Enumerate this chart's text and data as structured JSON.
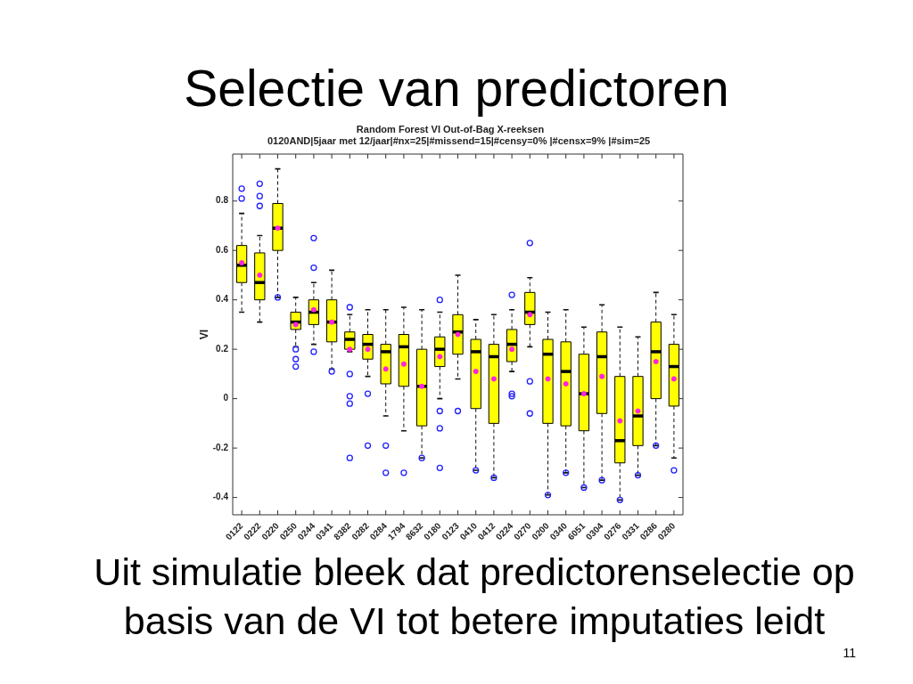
{
  "chart_data": {
    "type": "box",
    "title": "Random Forest VI Out-of-Bag X-reeksen",
    "subtitle": "0120AND|5jaar met 12/jaar|#nx=25|#missend=15|#censy=0% |#censx=9% |#sim=25",
    "ylabel": "VI",
    "categories": [
      "0122",
      "0222",
      "0220",
      "0250",
      "0244",
      "0341",
      "8382",
      "0282",
      "0284",
      "1794",
      "8632",
      "0180",
      "0123",
      "0410",
      "0412",
      "0224",
      "0270",
      "0200",
      "0340",
      "6051",
      "0304",
      "0276",
      "0331",
      "0286",
      "0280"
    ],
    "color": "#ffff00",
    "boxes": [
      {
        "low": 0.35,
        "q1": 0.47,
        "median": 0.54,
        "q3": 0.62,
        "high": 0.75,
        "mean": 0.55,
        "outliers": [
          0.85,
          0.81
        ]
      },
      {
        "low": 0.31,
        "q1": 0.4,
        "median": 0.47,
        "q3": 0.59,
        "high": 0.66,
        "mean": 0.5,
        "outliers": [
          0.87,
          0.82,
          0.78
        ]
      },
      {
        "low": 0.41,
        "q1": 0.6,
        "median": 0.69,
        "q3": 0.79,
        "high": 0.93,
        "mean": 0.69,
        "outliers": [
          0.41
        ]
      },
      {
        "low": 0.21,
        "q1": 0.28,
        "median": 0.31,
        "q3": 0.35,
        "high": 0.41,
        "mean": 0.3,
        "outliers": [
          0.2,
          0.16,
          0.13
        ]
      },
      {
        "low": 0.22,
        "q1": 0.3,
        "median": 0.35,
        "q3": 0.4,
        "high": 0.47,
        "mean": 0.36,
        "outliers": [
          0.65,
          0.53,
          0.19
        ]
      },
      {
        "low": 0.12,
        "q1": 0.23,
        "median": 0.31,
        "q3": 0.4,
        "high": 0.52,
        "mean": 0.31,
        "outliers": [
          0.11
        ]
      },
      {
        "low": 0.19,
        "q1": 0.2,
        "median": 0.24,
        "q3": 0.27,
        "high": 0.34,
        "mean": 0.2,
        "outliers": [
          0.37,
          0.1,
          0.01,
          -0.02,
          -0.24
        ]
      },
      {
        "low": 0.09,
        "q1": 0.16,
        "median": 0.22,
        "q3": 0.26,
        "high": 0.36,
        "mean": 0.2,
        "outliers": [
          0.02,
          -0.19
        ]
      },
      {
        "low": -0.07,
        "q1": 0.06,
        "median": 0.19,
        "q3": 0.22,
        "high": 0.36,
        "mean": 0.12,
        "outliers": [
          -0.19,
          -0.3
        ]
      },
      {
        "low": -0.13,
        "q1": 0.05,
        "median": 0.21,
        "q3": 0.26,
        "high": 0.37,
        "mean": 0.14,
        "outliers": [
          -0.3
        ]
      },
      {
        "low": -0.24,
        "q1": -0.11,
        "median": 0.05,
        "q3": 0.2,
        "high": 0.36,
        "mean": 0.05,
        "outliers": [
          -0.24
        ]
      },
      {
        "low": 0.0,
        "q1": 0.13,
        "median": 0.2,
        "q3": 0.25,
        "high": 0.35,
        "mean": 0.17,
        "outliers": [
          0.4,
          -0.05,
          -0.12,
          -0.28
        ]
      },
      {
        "low": 0.08,
        "q1": 0.18,
        "median": 0.27,
        "q3": 0.34,
        "high": 0.5,
        "mean": 0.26,
        "outliers": [
          -0.05
        ]
      },
      {
        "low": -0.29,
        "q1": -0.04,
        "median": 0.19,
        "q3": 0.24,
        "high": 0.32,
        "mean": 0.11,
        "outliers": [
          -0.29
        ]
      },
      {
        "low": -0.32,
        "q1": -0.1,
        "median": 0.17,
        "q3": 0.22,
        "high": 0.34,
        "mean": 0.08,
        "outliers": [
          -0.32
        ]
      },
      {
        "low": 0.11,
        "q1": 0.15,
        "median": 0.22,
        "q3": 0.28,
        "high": 0.36,
        "mean": 0.2,
        "outliers": [
          0.42,
          0.02,
          0.01
        ]
      },
      {
        "low": 0.21,
        "q1": 0.3,
        "median": 0.35,
        "q3": 0.43,
        "high": 0.49,
        "mean": 0.34,
        "outliers": [
          0.63,
          0.07,
          -0.06
        ]
      },
      {
        "low": -0.39,
        "q1": -0.1,
        "median": 0.18,
        "q3": 0.24,
        "high": 0.35,
        "mean": 0.08,
        "outliers": [
          -0.39
        ]
      },
      {
        "low": -0.3,
        "q1": -0.11,
        "median": 0.11,
        "q3": 0.23,
        "high": 0.36,
        "mean": 0.06,
        "outliers": [
          -0.3
        ]
      },
      {
        "low": -0.36,
        "q1": -0.13,
        "median": 0.02,
        "q3": 0.18,
        "high": 0.29,
        "mean": 0.02,
        "outliers": [
          -0.36
        ]
      },
      {
        "low": -0.33,
        "q1": -0.06,
        "median": 0.17,
        "q3": 0.27,
        "high": 0.38,
        "mean": 0.09,
        "outliers": [
          -0.33
        ]
      },
      {
        "low": -0.41,
        "q1": -0.26,
        "median": -0.17,
        "q3": 0.09,
        "high": 0.29,
        "mean": -0.09,
        "outliers": [
          -0.41
        ]
      },
      {
        "low": -0.31,
        "q1": -0.19,
        "median": -0.07,
        "q3": 0.09,
        "high": 0.25,
        "mean": -0.05,
        "outliers": [
          -0.31
        ]
      },
      {
        "low": -0.19,
        "q1": 0.0,
        "median": 0.19,
        "q3": 0.31,
        "high": 0.43,
        "mean": 0.15,
        "outliers": [
          -0.19
        ]
      },
      {
        "low": -0.24,
        "q1": -0.03,
        "median": 0.13,
        "q3": 0.22,
        "high": 0.34,
        "mean": 0.08,
        "outliers": [
          -0.29
        ]
      }
    ],
    "ylim": [
      -0.47,
      0.99
    ],
    "yticks": [
      -0.4,
      -0.2,
      0,
      0.2,
      0.4,
      0.6,
      0.8
    ],
    "grid": false,
    "legend": false,
    "annotations": [
      "Selectie van predictoren",
      "Uit simulatie bleek dat predictorenselectie op basis van de VI tot betere imputaties leidt",
      "11"
    ]
  }
}
